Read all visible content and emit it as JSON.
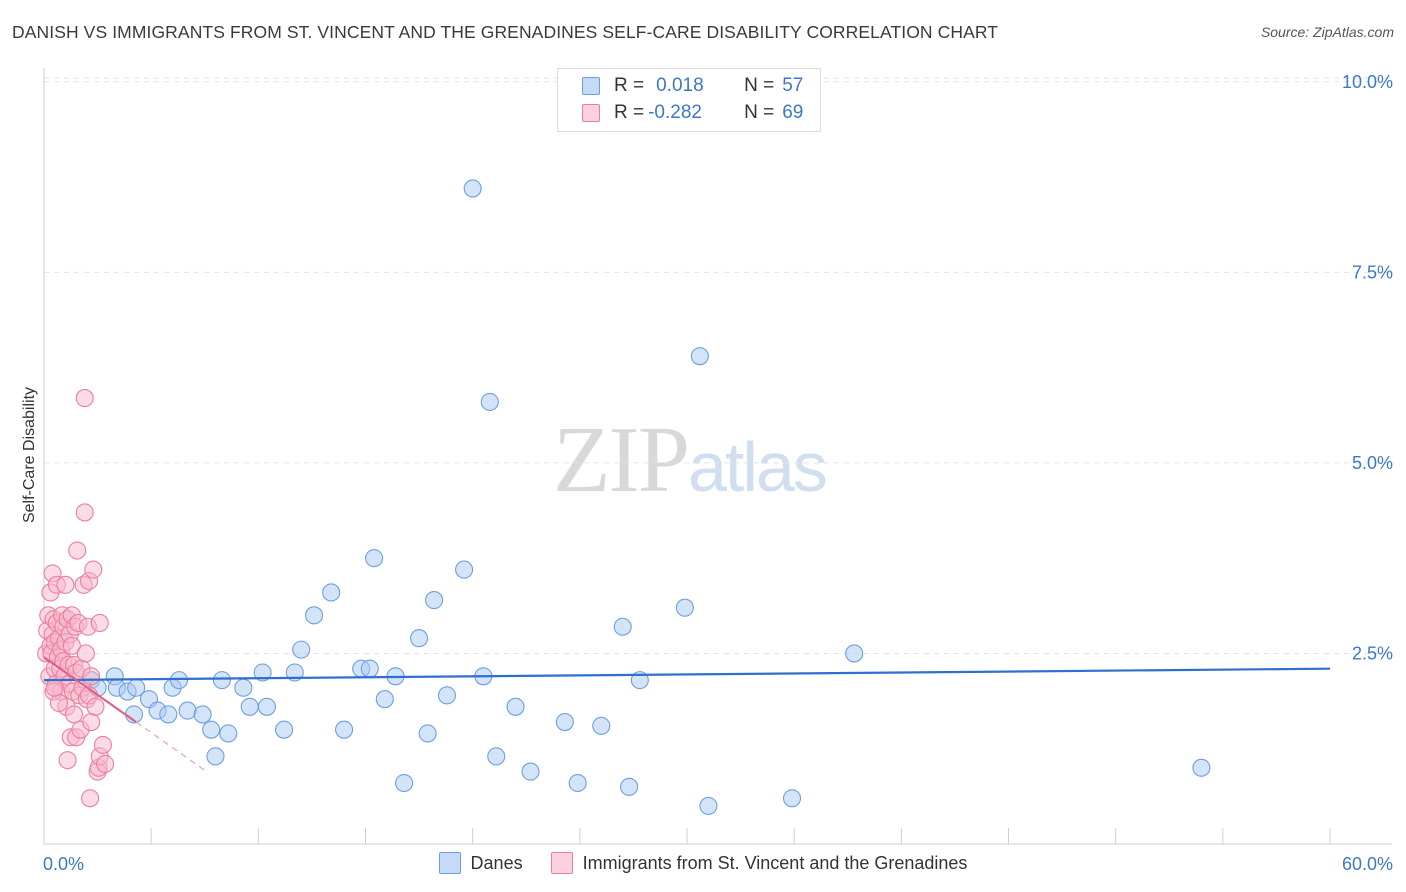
{
  "title": "DANISH VS IMMIGRANTS FROM ST. VINCENT AND THE GRENADINES SELF-CARE DISABILITY CORRELATION CHART",
  "source": "Source: ZipAtlas.com",
  "watermark": {
    "zip": "ZIP",
    "atlas": "atlas"
  },
  "legend_top": [
    {
      "r_label": "R =",
      "r_value": "0.018",
      "n_label": "N =",
      "n_value": "57",
      "color": "#a9c9f2",
      "border": "#6d9fe0"
    },
    {
      "r_label": "R =",
      "r_value": "-0.282",
      "n_label": "N =",
      "n_value": "69",
      "color": "#f7b8cb",
      "border": "#ec7fa0"
    }
  ],
  "legend_bottom": [
    {
      "label": "Danes",
      "color": "#a9c9f2",
      "border": "#6d9fe0"
    },
    {
      "label": "Immigrants from St. Vincent and the Grenadines",
      "color": "#f7b8cb",
      "border": "#ec7fa0"
    }
  ],
  "chart_data": {
    "type": "scatter",
    "title": "DANISH VS IMMIGRANTS FROM ST. VINCENT AND THE GRENADINES SELF-CARE DISABILITY CORRELATION CHART",
    "xlabel": "",
    "ylabel": "Self-Care Disability",
    "xlim": [
      0,
      60
    ],
    "ylim": [
      0,
      10.5
    ],
    "x_tick_labels": [
      {
        "value": 0,
        "label": "0.0%"
      },
      {
        "value": 60,
        "label": "60.0%"
      }
    ],
    "y_tick_labels": [
      {
        "value": 2.5,
        "label": "2.5%"
      },
      {
        "value": 5.0,
        "label": "5.0%"
      },
      {
        "value": 7.5,
        "label": "7.5%"
      },
      {
        "value": 10.0,
        "label": "10.0%"
      }
    ],
    "grid": "horizontal dashed",
    "legend_position": "top-center",
    "series": [
      {
        "name": "Danes",
        "color": "#6d9fe0",
        "fill": "#a9c9f2",
        "trend": {
          "x": [
            0,
            60
          ],
          "y": [
            2.15,
            2.3
          ],
          "dashed_x": null
        },
        "points": [
          [
            2.2,
            2.15
          ],
          [
            2.5,
            2.05
          ],
          [
            3.3,
            2.2
          ],
          [
            3.4,
            2.05
          ],
          [
            3.9,
            2.0
          ],
          [
            4.2,
            1.7
          ],
          [
            4.3,
            2.05
          ],
          [
            4.9,
            1.9
          ],
          [
            5.3,
            1.75
          ],
          [
            5.8,
            1.7
          ],
          [
            6.0,
            2.05
          ],
          [
            6.3,
            2.15
          ],
          [
            6.7,
            1.75
          ],
          [
            7.4,
            1.7
          ],
          [
            7.8,
            1.5
          ],
          [
            8.0,
            1.15
          ],
          [
            8.3,
            2.15
          ],
          [
            8.6,
            1.45
          ],
          [
            9.3,
            2.05
          ],
          [
            9.6,
            1.8
          ],
          [
            10.2,
            2.25
          ],
          [
            10.4,
            1.8
          ],
          [
            11.2,
            1.5
          ],
          [
            11.7,
            2.25
          ],
          [
            12.0,
            2.55
          ],
          [
            12.6,
            3.0
          ],
          [
            13.4,
            3.3
          ],
          [
            14.0,
            1.5
          ],
          [
            14.8,
            2.3
          ],
          [
            15.2,
            2.3
          ],
          [
            15.4,
            3.75
          ],
          [
            15.9,
            1.9
          ],
          [
            16.4,
            2.2
          ],
          [
            16.8,
            0.8
          ],
          [
            17.5,
            2.7
          ],
          [
            17.9,
            1.45
          ],
          [
            18.2,
            3.2
          ],
          [
            18.8,
            1.95
          ],
          [
            19.6,
            3.6
          ],
          [
            20.0,
            8.6
          ],
          [
            20.5,
            2.2
          ],
          [
            20.8,
            5.8
          ],
          [
            21.1,
            1.15
          ],
          [
            22.0,
            1.8
          ],
          [
            22.7,
            0.95
          ],
          [
            24.3,
            1.6
          ],
          [
            24.9,
            0.8
          ],
          [
            26.0,
            1.55
          ],
          [
            27.0,
            2.85
          ],
          [
            27.3,
            0.75
          ],
          [
            27.8,
            2.15
          ],
          [
            29.9,
            3.1
          ],
          [
            30.6,
            6.4
          ],
          [
            31.0,
            0.5
          ],
          [
            34.9,
            0.6
          ],
          [
            37.8,
            2.5
          ],
          [
            54.0,
            1.0
          ]
        ]
      },
      {
        "name": "Immigrants from St. Vincent and the Grenadines",
        "color": "#ec7fa0",
        "fill": "#f7b8cb",
        "trend": {
          "x": [
            0,
            4.3
          ],
          "y": [
            2.45,
            1.6
          ],
          "dashed_x": [
            4.3,
            7.5
          ]
        },
        "points": [
          [
            0.1,
            2.5
          ],
          [
            0.15,
            2.8
          ],
          [
            0.2,
            3.0
          ],
          [
            0.25,
            2.2
          ],
          [
            0.3,
            2.6
          ],
          [
            0.3,
            3.3
          ],
          [
            0.35,
            2.5
          ],
          [
            0.4,
            2.75
          ],
          [
            0.4,
            3.55
          ],
          [
            0.45,
            2.95
          ],
          [
            0.5,
            2.3
          ],
          [
            0.5,
            2.65
          ],
          [
            0.55,
            2.1
          ],
          [
            0.6,
            3.4
          ],
          [
            0.6,
            2.9
          ],
          [
            0.65,
            2.45
          ],
          [
            0.7,
            2.7
          ],
          [
            0.75,
            2.3
          ],
          [
            0.8,
            2.0
          ],
          [
            0.8,
            2.55
          ],
          [
            0.85,
            3.0
          ],
          [
            0.9,
            2.4
          ],
          [
            0.9,
            2.85
          ],
          [
            0.95,
            2.2
          ],
          [
            1.0,
            3.4
          ],
          [
            1.0,
            2.65
          ],
          [
            1.05,
            1.8
          ],
          [
            1.1,
            1.1
          ],
          [
            1.1,
            2.95
          ],
          [
            1.15,
            2.35
          ],
          [
            1.2,
            2.1
          ],
          [
            1.2,
            2.75
          ],
          [
            1.25,
            1.4
          ],
          [
            1.3,
            2.6
          ],
          [
            1.3,
            3.0
          ],
          [
            1.35,
            2.0
          ],
          [
            1.4,
            1.7
          ],
          [
            1.4,
            2.35
          ],
          [
            1.45,
            2.85
          ],
          [
            1.5,
            1.4
          ],
          [
            1.5,
            2.25
          ],
          [
            1.55,
            3.85
          ],
          [
            1.6,
            2.9
          ],
          [
            1.65,
            1.95
          ],
          [
            1.7,
            1.5
          ],
          [
            1.75,
            2.3
          ],
          [
            1.8,
            2.05
          ],
          [
            1.85,
            3.4
          ],
          [
            1.9,
            4.35
          ],
          [
            1.9,
            5.85
          ],
          [
            1.95,
            2.5
          ],
          [
            2.0,
            1.9
          ],
          [
            2.05,
            2.85
          ],
          [
            2.1,
            1.95
          ],
          [
            2.1,
            3.45
          ],
          [
            2.15,
            0.6
          ],
          [
            2.2,
            1.6
          ],
          [
            2.3,
            3.6
          ],
          [
            2.4,
            1.8
          ],
          [
            2.5,
            0.95
          ],
          [
            2.6,
            2.9
          ],
          [
            2.2,
            2.2
          ],
          [
            0.45,
            2.0
          ],
          [
            0.7,
            1.85
          ],
          [
            2.55,
            1.0
          ],
          [
            2.6,
            1.15
          ],
          [
            2.75,
            1.3
          ],
          [
            2.85,
            1.05
          ],
          [
            0.5,
            2.05
          ]
        ]
      }
    ]
  }
}
